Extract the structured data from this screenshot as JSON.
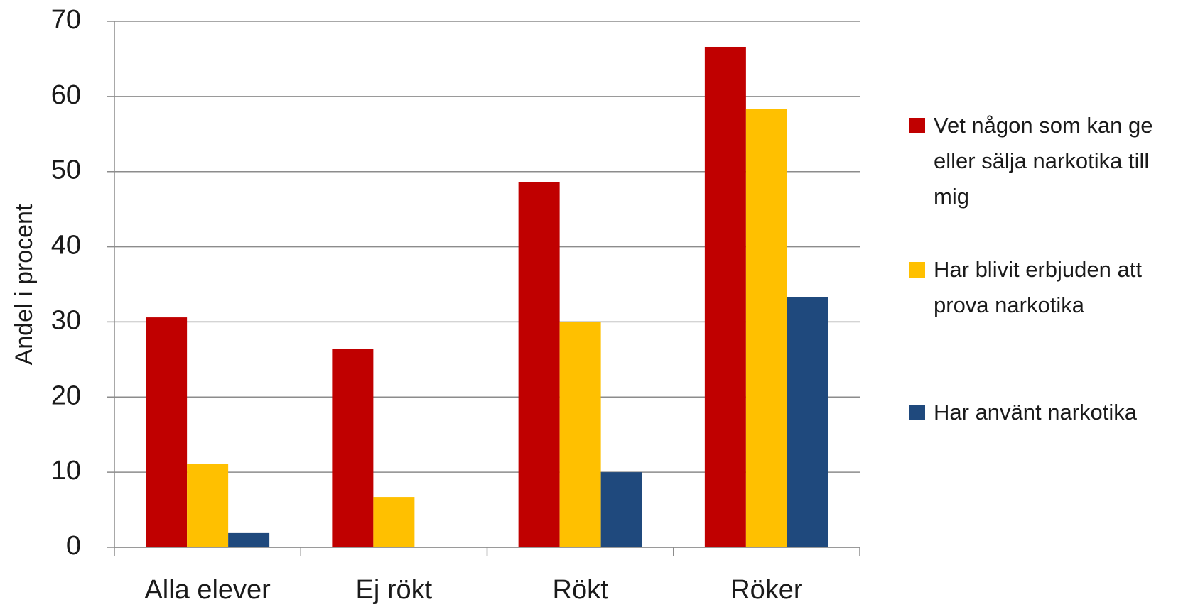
{
  "chart_data": {
    "type": "bar",
    "y_label": "Andel i procent",
    "categories": [
      "Alla elever",
      "Ej rökt",
      "Rökt",
      "Röker"
    ],
    "series": [
      {
        "name": "Vet någon som kan ge eller sälja narkotika till mig",
        "color": "#c00000",
        "values": [
          30.6,
          26.4,
          48.6,
          66.6
        ]
      },
      {
        "name": "Har blivit erbjuden att prova narkotika",
        "color": "#ffc000",
        "values": [
          11.1,
          6.7,
          30.0,
          58.3
        ]
      },
      {
        "name": "Har använt narkotika",
        "color": "#1f497d",
        "values": [
          1.9,
          0,
          10.0,
          33.3
        ]
      }
    ],
    "ylim": [
      0,
      70
    ],
    "yticks": [
      0,
      10,
      20,
      30,
      40,
      50,
      60,
      70
    ],
    "grid": true,
    "legend": "right"
  }
}
